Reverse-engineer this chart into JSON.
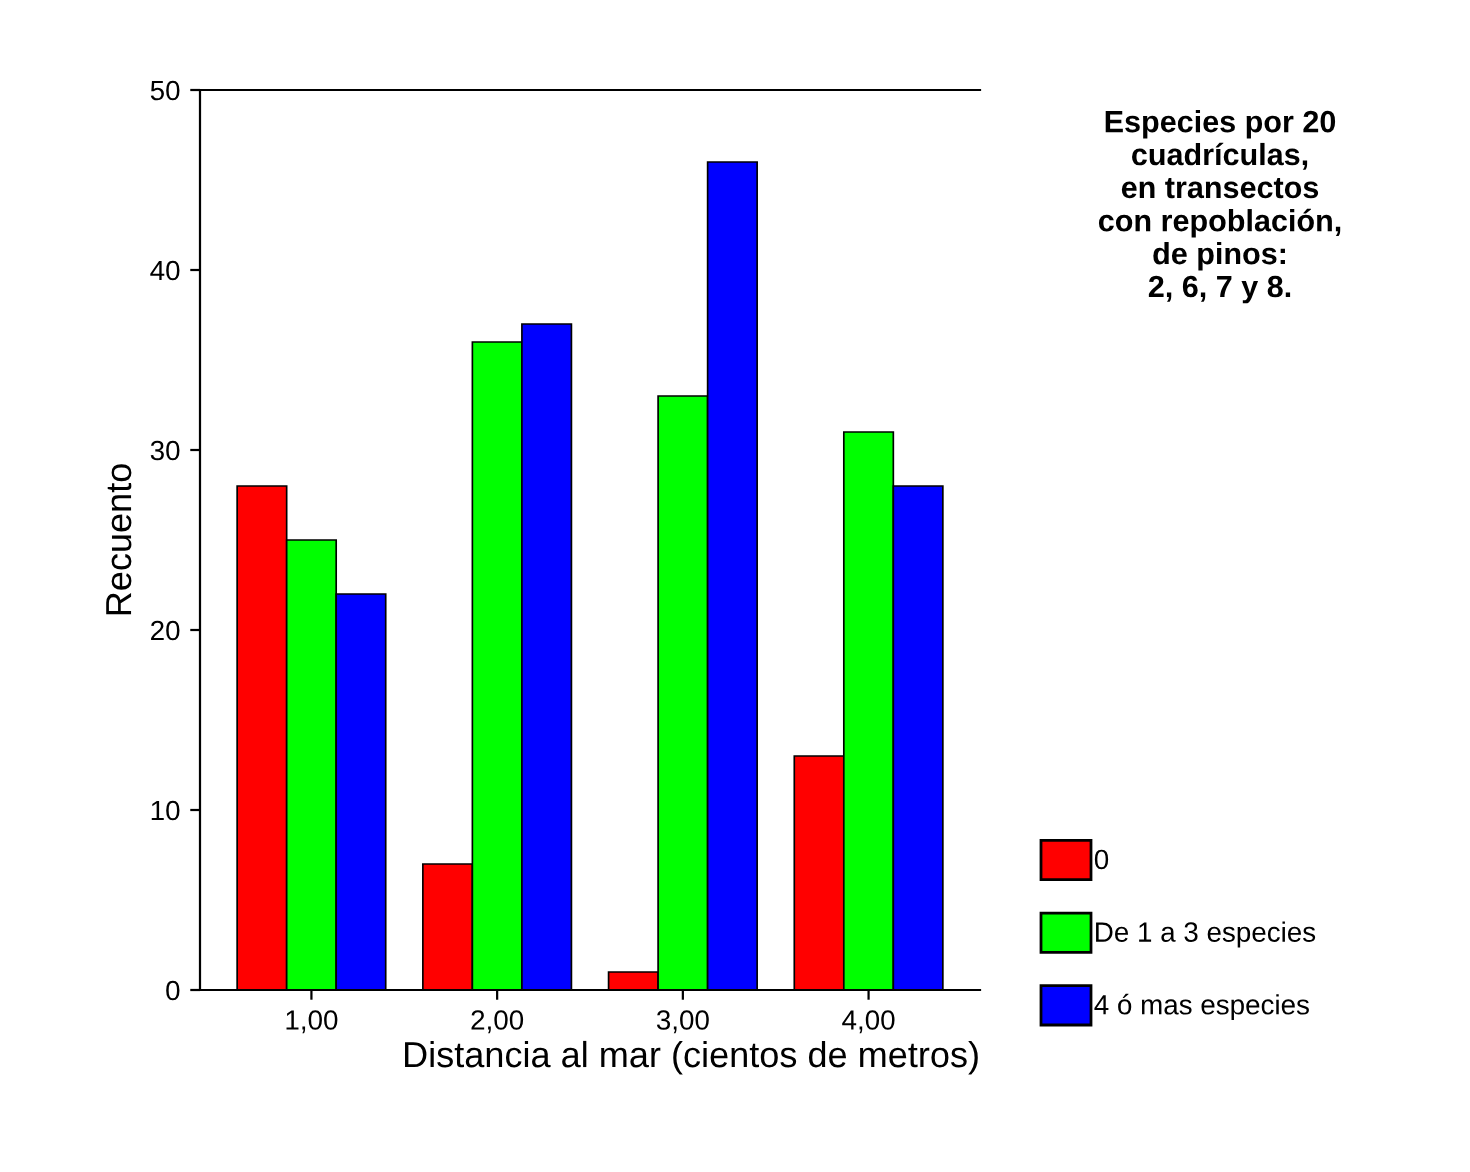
{
  "chart_data": {
    "type": "bar",
    "xlabel": "Distancia al mar (cientos de metros)",
    "ylabel": "Recuento",
    "categories": [
      "1,00",
      "2,00",
      "3,00",
      "4,00"
    ],
    "series": [
      {
        "name": "0",
        "color": "#ff0000",
        "values": [
          28,
          7,
          1,
          13
        ]
      },
      {
        "name": "De 1 a 3 especies",
        "color": "#00ff00",
        "values": [
          25,
          36,
          33,
          31
        ]
      },
      {
        "name": "4 ó mas especies",
        "color": "#0000ff",
        "values": [
          22,
          37,
          46,
          28
        ]
      }
    ],
    "ylim": [
      0,
      50
    ],
    "yticks": [
      0,
      10,
      20,
      30,
      40,
      50
    ],
    "grid": false,
    "legend": "right",
    "annotations": [
      "Especies por 20\ncuadrículas,\nen transectos\ncon repoblación,\nde pinos:\n2, 6, 7 y 8."
    ]
  }
}
